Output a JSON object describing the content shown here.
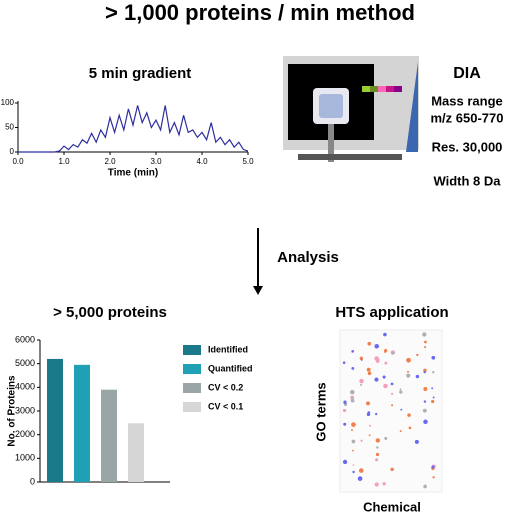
{
  "title": "> 1,000 proteins / min method",
  "arrow_label": "Analysis",
  "dia": {
    "title": "DIA",
    "lines": [
      "Mass range",
      "m/z 650-770",
      "Res. 30,000",
      "Width 8 Da"
    ]
  },
  "hts": {
    "title": "HTS application",
    "xlabel": "Chemical",
    "ylabel": "GO terms"
  },
  "chart_data": [
    {
      "type": "line",
      "title": "5 min gradient",
      "xlabel": "Time (min)",
      "color": "#2e2e9e",
      "x": [
        0,
        0.1,
        0.2,
        0.3,
        0.4,
        0.5,
        0.6,
        0.7,
        0.8,
        0.9,
        1,
        1.1,
        1.2,
        1.3,
        1.4,
        1.5,
        1.6,
        1.7,
        1.8,
        1.9,
        2,
        2.1,
        2.2,
        2.3,
        2.4,
        2.5,
        2.6,
        2.7,
        2.8,
        2.9,
        3,
        3.1,
        3.2,
        3.3,
        3.4,
        3.5,
        3.6,
        3.7,
        3.8,
        3.9,
        4,
        4.1,
        4.2,
        4.3,
        4.4,
        4.5,
        4.6,
        4.7,
        4.8,
        4.9,
        5
      ],
      "values": [
        0,
        0,
        0,
        0,
        0,
        0,
        0,
        0,
        0,
        2,
        12,
        5,
        15,
        10,
        25,
        18,
        38,
        20,
        45,
        30,
        70,
        40,
        75,
        45,
        88,
        55,
        95,
        60,
        80,
        50,
        65,
        45,
        95,
        40,
        60,
        35,
        75,
        40,
        45,
        30,
        40,
        25,
        60,
        20,
        30,
        15,
        25,
        10,
        20,
        5,
        2
      ],
      "xlim": [
        0,
        5
      ],
      "xticks": [
        {
          "value": 0,
          "label": "0.0"
        },
        {
          "value": 1,
          "label": "1.0"
        },
        {
          "value": 2,
          "label": "2.0"
        },
        {
          "value": 3,
          "label": "3.0"
        },
        {
          "value": 4,
          "label": "4.0"
        },
        {
          "value": 5,
          "label": "5.0"
        }
      ],
      "ylim": [
        0,
        100
      ],
      "yticks": [
        0,
        50,
        100
      ]
    },
    {
      "type": "bar",
      "title": "> 5,000 proteins",
      "ylabel": "No. of Proteins",
      "series": [
        {
          "name": "Identified",
          "color": "#1b7a8a",
          "values": [
            5200
          ]
        },
        {
          "name": "Quantified",
          "color": "#1fa0b4",
          "values": [
            4950
          ]
        },
        {
          "name": "CV < 0.2",
          "color": "#9aa6a6",
          "values": [
            3900
          ]
        },
        {
          "name": "CV < 0.1",
          "color": "#d6d6d6",
          "values": [
            2480
          ]
        }
      ],
      "ylim": [
        0,
        6000
      ],
      "yticks": [
        0,
        1000,
        2000,
        3000,
        4000,
        5000,
        6000
      ]
    }
  ]
}
